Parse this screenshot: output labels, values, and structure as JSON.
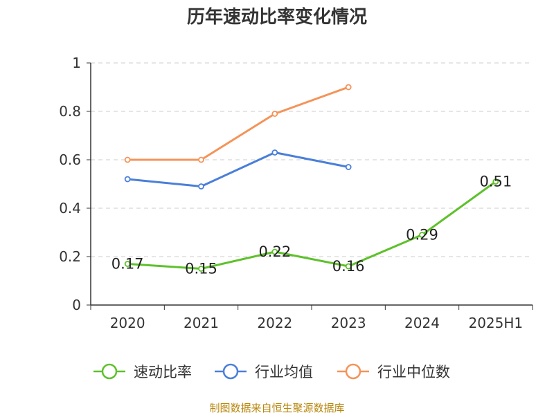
{
  "chart_data": {
    "type": "line",
    "title": "历年速动比率变化情况",
    "categories": [
      "2020",
      "2021",
      "2022",
      "2023",
      "2024",
      "2025H1"
    ],
    "ylim": [
      0,
      1
    ],
    "yticks": [
      "0",
      "0.2",
      "0.4",
      "0.6",
      "0.8",
      "1"
    ],
    "ytick_values": [
      0,
      0.2,
      0.4,
      0.6,
      0.8,
      1
    ],
    "grid": true,
    "legend_position": "bottom",
    "series": [
      {
        "name": "速动比率",
        "color": "#5ec12b",
        "values": [
          0.17,
          0.15,
          0.22,
          0.16,
          0.29,
          0.51
        ],
        "labels": [
          "0.17",
          "0.15",
          "0.22",
          "0.16",
          "0.29",
          "0.51"
        ]
      },
      {
        "name": "行业均值",
        "color": "#4a7fd9",
        "values": [
          0.52,
          0.49,
          0.63,
          0.57,
          null,
          null
        ]
      },
      {
        "name": "行业中位数",
        "color": "#f59358",
        "values": [
          0.6,
          0.6,
          0.79,
          0.9,
          null,
          null
        ]
      }
    ],
    "source": "制图数据来自恒生聚源数据库"
  }
}
